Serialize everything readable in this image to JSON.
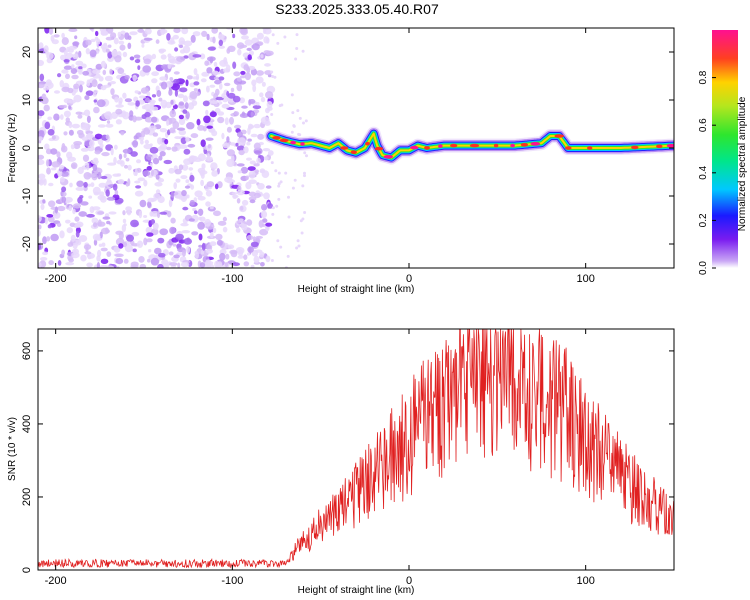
{
  "title": "S233.2025.333.05.40.R07",
  "colors": {
    "snr_line": "#e02020",
    "speckle": "#7a1cf0",
    "axis": "#000000"
  },
  "chart_data": [
    {
      "type": "heatmap",
      "name": "spectrogram",
      "xlabel": "Height of straight line (km)",
      "ylabel": "Frequency (Hz)",
      "xlim": [
        -210,
        150
      ],
      "ylim": [
        -25,
        25
      ],
      "xticks": [
        -200,
        -100,
        0,
        100
      ],
      "yticks": [
        -20,
        -10,
        0,
        10,
        20
      ],
      "noise_region_x": [
        -210,
        -78
      ],
      "signal_start_x": -78,
      "ridge": {
        "x": [
          -78,
          -70,
          -62,
          -55,
          -50,
          -45,
          -40,
          -35,
          -30,
          -25,
          -20,
          -18,
          -15,
          -10,
          -5,
          0,
          5,
          10,
          20,
          40,
          60,
          75,
          80,
          85,
          90,
          100,
          120,
          150
        ],
        "y": [
          2.5,
          1.5,
          0.8,
          1.0,
          0.5,
          0.0,
          1.0,
          -0.5,
          -1.0,
          0.0,
          3.0,
          0.5,
          -1.5,
          -2.0,
          -0.5,
          -0.5,
          0.5,
          0.0,
          0.5,
          0.5,
          0.5,
          1.0,
          2.5,
          2.5,
          0.0,
          0.0,
          0.0,
          0.5
        ]
      },
      "colorbar": {
        "label": "Normalized spectral amplitude",
        "ticks": [
          "0.0",
          "0.2",
          "0.4",
          "0.6",
          "0.8"
        ],
        "range": [
          0,
          1
        ]
      }
    },
    {
      "type": "line",
      "name": "snr",
      "xlabel": "Height of straight line (km)",
      "ylabel": "SNR (10 * v/v)",
      "xlim": [
        -210,
        150
      ],
      "ylim": [
        0,
        660
      ],
      "xticks": [
        -200,
        -100,
        0,
        100
      ],
      "yticks": [
        0,
        200,
        400,
        600
      ],
      "envelope": {
        "x": [
          -210,
          -70,
          -65,
          -55,
          -45,
          -35,
          -25,
          -15,
          -5,
          5,
          15,
          25,
          35,
          45,
          55,
          65,
          75,
          85,
          95,
          105,
          115,
          125,
          135,
          145,
          150
        ],
        "y": [
          18,
          18,
          50,
          100,
          140,
          180,
          230,
          280,
          330,
          390,
          440,
          490,
          520,
          530,
          520,
          500,
          470,
          440,
          390,
          330,
          280,
          230,
          190,
          150,
          140
        ]
      }
    }
  ]
}
